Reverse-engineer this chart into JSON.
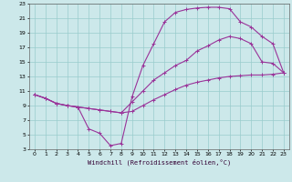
{
  "xlabel": "Windchill (Refroidissement éolien,°C)",
  "bg_color": "#cce8ea",
  "grid_color": "#99cccc",
  "line_color": "#993399",
  "xlim": [
    -0.5,
    23.5
  ],
  "ylim": [
    3,
    23
  ],
  "xticks": [
    0,
    1,
    2,
    3,
    4,
    5,
    6,
    7,
    8,
    9,
    10,
    11,
    12,
    13,
    14,
    15,
    16,
    17,
    18,
    19,
    20,
    21,
    22,
    23
  ],
  "yticks": [
    3,
    5,
    7,
    9,
    11,
    13,
    15,
    17,
    19,
    21,
    23
  ],
  "line1_x": [
    0,
    1,
    2,
    3,
    4,
    5,
    6,
    7,
    8,
    9,
    10,
    11,
    12,
    13,
    14,
    15,
    16,
    17,
    18,
    19,
    20,
    21,
    22,
    23
  ],
  "line1_y": [
    10.5,
    10.0,
    9.3,
    9.0,
    8.8,
    8.6,
    8.4,
    8.2,
    8.0,
    8.2,
    9.0,
    9.8,
    10.5,
    11.2,
    11.8,
    12.2,
    12.5,
    12.8,
    13.0,
    13.1,
    13.2,
    13.2,
    13.3,
    13.5
  ],
  "line2_x": [
    0,
    1,
    2,
    3,
    4,
    5,
    6,
    7,
    8,
    9,
    10,
    11,
    12,
    13,
    14,
    15,
    16,
    17,
    18,
    19,
    20,
    21,
    22,
    23
  ],
  "line2_y": [
    10.5,
    10.0,
    9.3,
    9.0,
    8.8,
    5.8,
    5.2,
    3.5,
    3.8,
    10.2,
    14.5,
    17.5,
    20.5,
    21.8,
    22.2,
    22.4,
    22.5,
    22.5,
    22.3,
    20.5,
    19.8,
    18.5,
    17.5,
    13.5
  ],
  "line3_x": [
    0,
    1,
    2,
    3,
    4,
    5,
    6,
    7,
    8,
    9,
    10,
    11,
    12,
    13,
    14,
    15,
    16,
    17,
    18,
    19,
    20,
    21,
    22,
    23
  ],
  "line3_y": [
    10.5,
    10.0,
    9.3,
    9.0,
    8.8,
    8.6,
    8.4,
    8.2,
    8.0,
    9.5,
    11.0,
    12.5,
    13.5,
    14.5,
    15.2,
    16.5,
    17.2,
    18.0,
    18.5,
    18.2,
    17.5,
    15.0,
    14.8,
    13.5
  ]
}
